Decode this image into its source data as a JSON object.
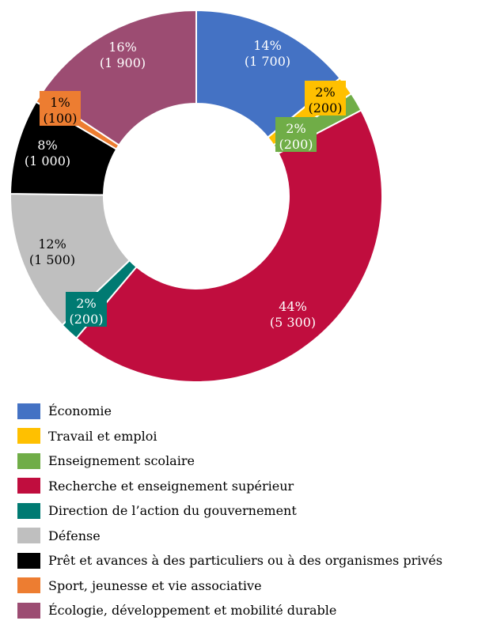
{
  "chart_data": {
    "type": "pie",
    "donut": true,
    "title": "",
    "legend_position": "bottom",
    "slices": [
      {
        "name": "Économie",
        "value": 1700,
        "percent_label": "14%",
        "value_label": "(1 700)",
        "color": "#4472C4",
        "label_color": "#ffffff"
      },
      {
        "name": "Travail et emploi",
        "value": 200,
        "percent_label": "2%",
        "value_label": "(200)",
        "color": "#FFC000",
        "label_color": "#000000"
      },
      {
        "name": "Enseignement scolaire",
        "value": 200,
        "percent_label": "2%",
        "value_label": "(200)",
        "color": "#70AD47",
        "label_color": "#ffffff"
      },
      {
        "name": "Recherche et enseignement supérieur",
        "value": 5300,
        "percent_label": "44%",
        "value_label": "(5 300)",
        "color": "#C00D3E",
        "label_color": "#ffffff"
      },
      {
        "name": "Direction de l’action du gouvernement",
        "value": 200,
        "percent_label": "2%",
        "value_label": "(200)",
        "color": "#007A72",
        "label_color": "#ffffff"
      },
      {
        "name": "Défense",
        "value": 1500,
        "percent_label": "12%",
        "value_label": "(1 500)",
        "color": "#BFBFBF",
        "label_color": "#000000"
      },
      {
        "name": "Prêt et avances à des particuliers ou à des organismes privés",
        "value": 1000,
        "percent_label": "8%",
        "value_label": "(1 000)",
        "color": "#000000",
        "label_color": "#ffffff"
      },
      {
        "name": "Sport, jeunesse et vie associative",
        "value": 100,
        "percent_label": "1%",
        "value_label": "(100)",
        "color": "#ED7D31",
        "label_color": "#000000"
      },
      {
        "name": "Écologie, développement et mobilité durable",
        "value": 1900,
        "percent_label": "16%",
        "value_label": "(1 900)",
        "color": "#9C4C72",
        "label_color": "#ffffff"
      }
    ]
  }
}
